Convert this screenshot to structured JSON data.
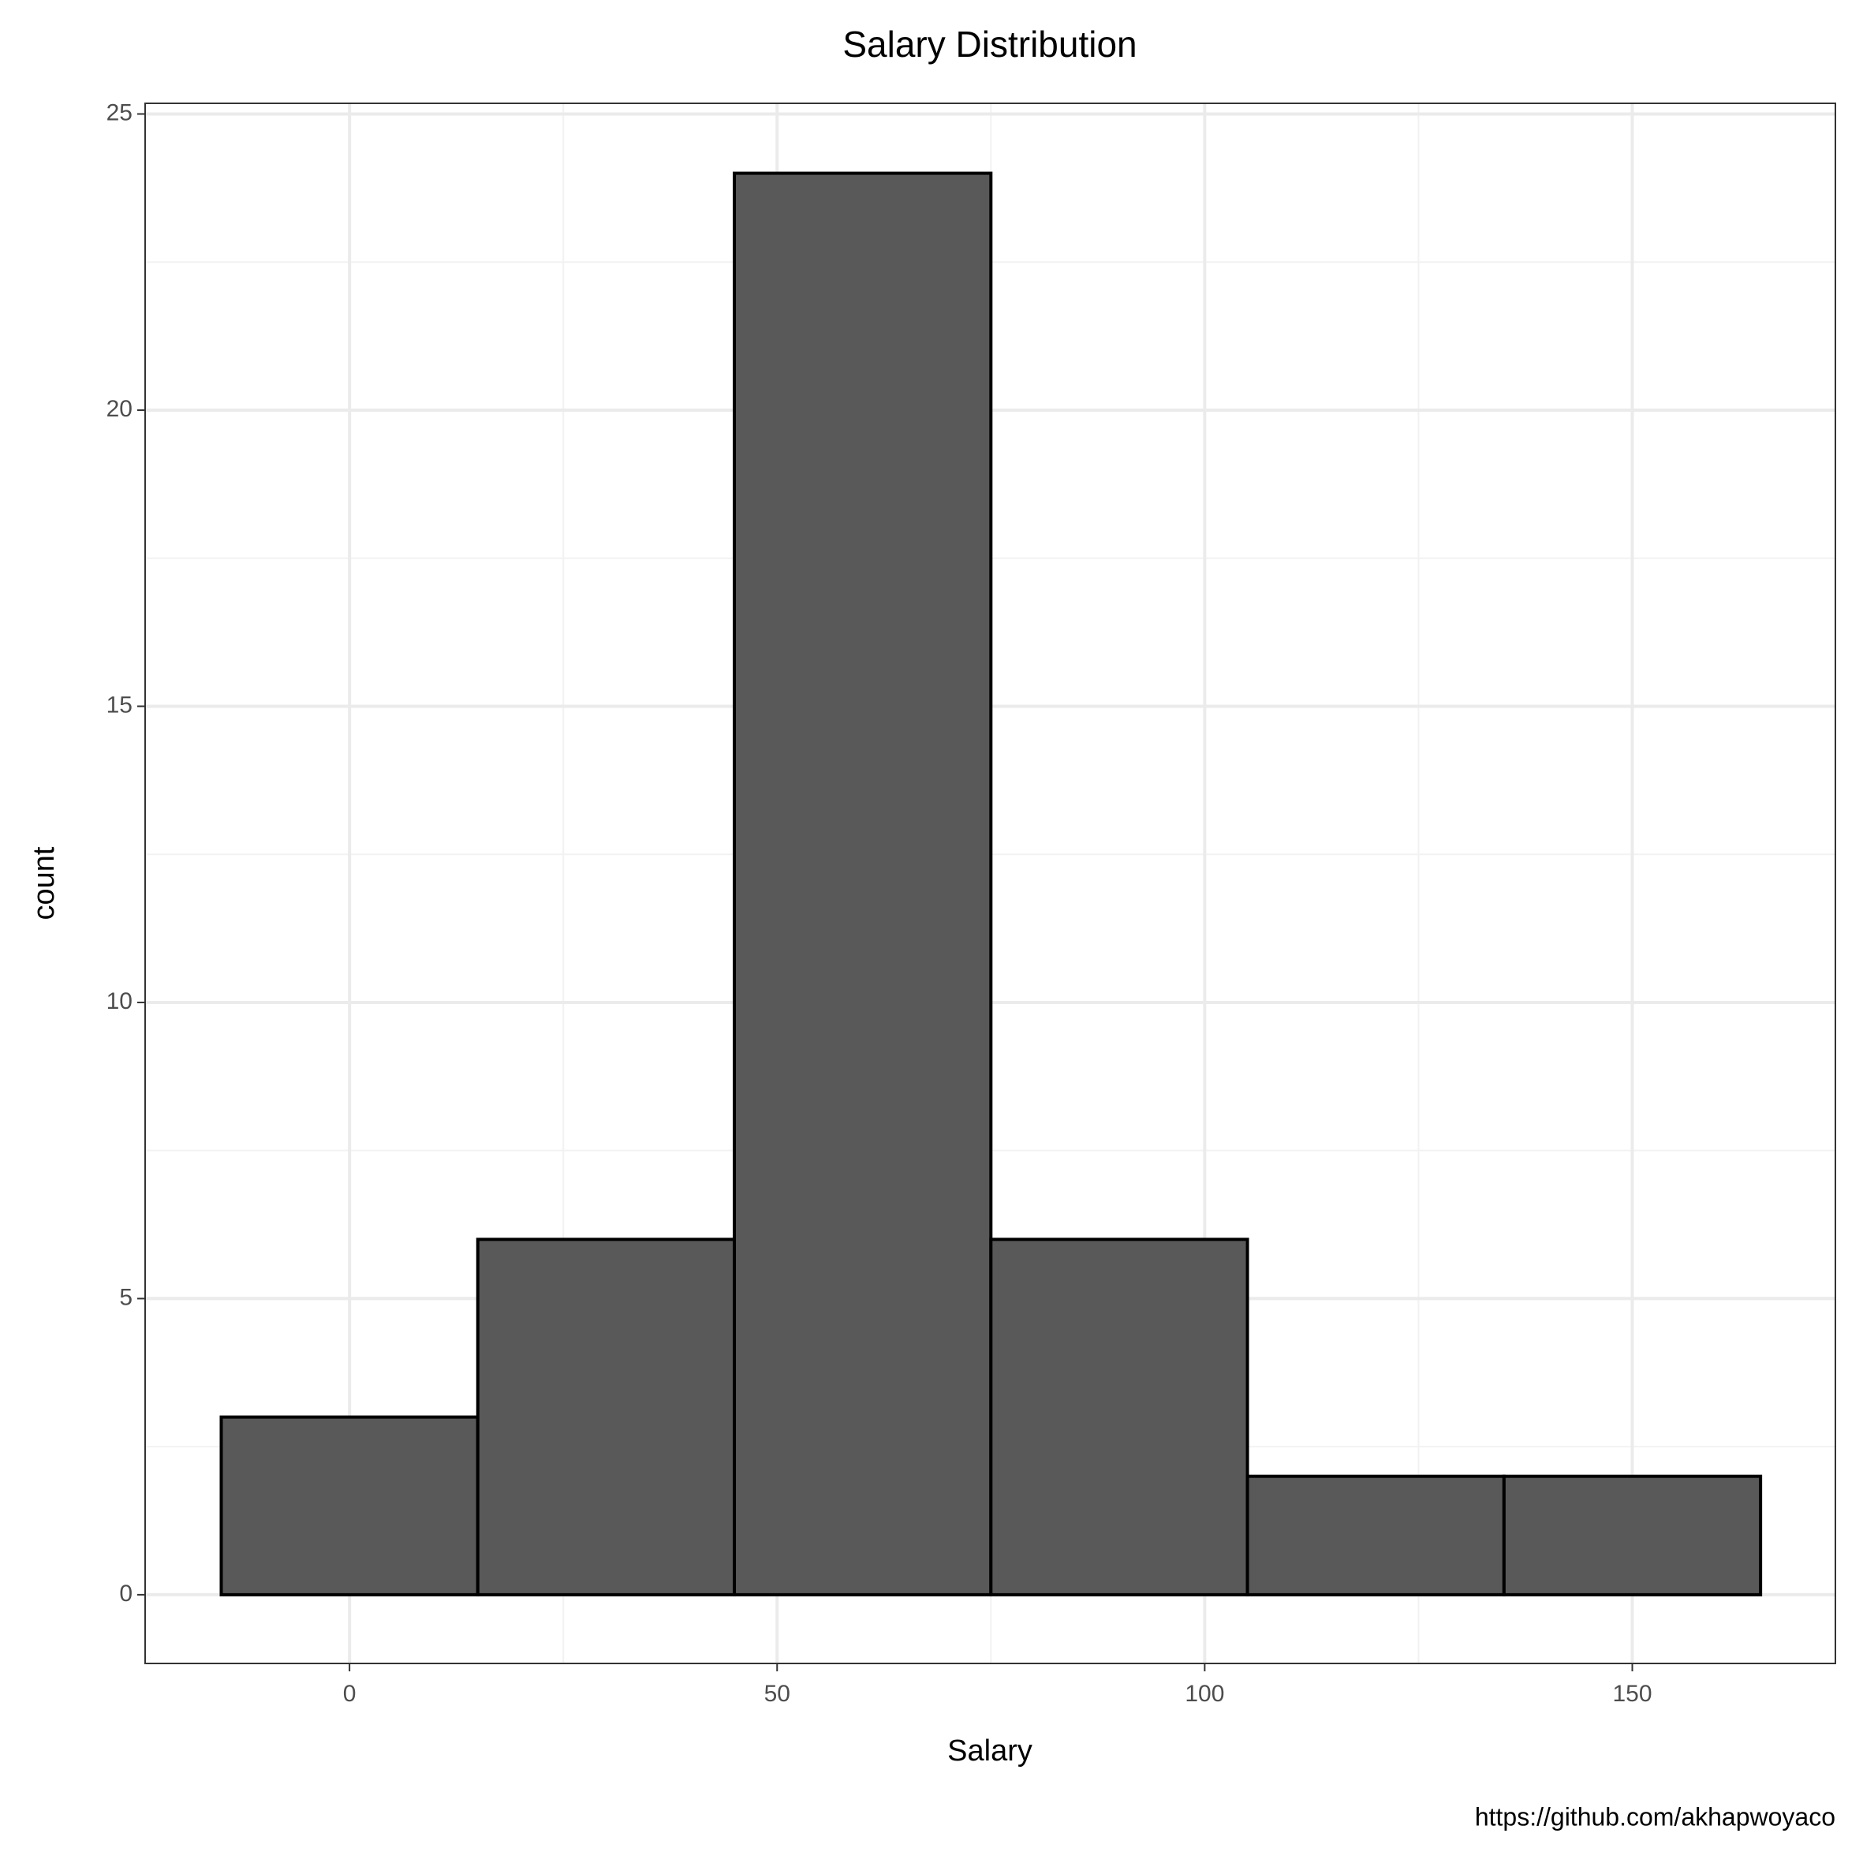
{
  "chart_data": {
    "type": "histogram",
    "title": "Salary Distribution",
    "x_label": "Salary",
    "y_label": "count",
    "caption": "https://github.com/akhapwoyaco",
    "bins": [
      -15,
      15,
      45,
      75,
      105,
      135,
      165
    ],
    "values": [
      3,
      6,
      24,
      6,
      2,
      2
    ],
    "color": "#595959",
    "edge_color": "#000000",
    "xlim": [
      -23.9,
      173.75
    ],
    "xticks": [
      0,
      50,
      100,
      150
    ],
    "ylim": [
      -1.16,
      25.18
    ],
    "yticks": [
      0,
      5,
      10,
      15,
      20,
      25
    ],
    "grid": true
  }
}
